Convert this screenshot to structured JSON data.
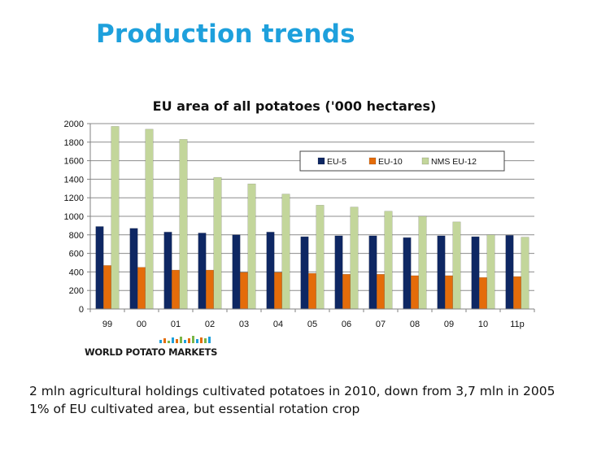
{
  "slide": {
    "title": "Production trends",
    "bullets": [
      "2 mln agricultural holdings cultivated potatoes in 2010, down from 3,7 mln in 2005",
      "1% of EU cultivated area, but essential rotation crop"
    ]
  },
  "logo": {
    "text": "WORLD POTATO MARKETS"
  },
  "colors": {
    "title": "#1ea0dc",
    "eu5": "#0e2763",
    "eu10": "#e46c0a",
    "nms": "#c3d69b"
  },
  "chart_data": {
    "type": "bar",
    "title": "EU area of all potatoes ('000 hectares)",
    "xlabel": "",
    "ylabel": "",
    "categories": [
      "99",
      "00",
      "01",
      "02",
      "03",
      "04",
      "05",
      "06",
      "07",
      "08",
      "09",
      "10",
      "11p"
    ],
    "ylim": [
      0,
      2000
    ],
    "yticks": [
      0,
      200,
      400,
      600,
      800,
      1000,
      1200,
      1400,
      1600,
      1800,
      2000
    ],
    "grid": true,
    "legend_position": "top-right",
    "series": [
      {
        "name": "EU-5",
        "color": "#0e2763",
        "values": [
          890,
          870,
          830,
          820,
          800,
          830,
          780,
          790,
          790,
          770,
          790,
          780,
          795
        ]
      },
      {
        "name": "EU-10",
        "color": "#e46c0a",
        "values": [
          470,
          450,
          420,
          420,
          395,
          395,
          385,
          375,
          375,
          360,
          360,
          340,
          350
        ]
      },
      {
        "name": "NMS EU-12",
        "color": "#c3d69b",
        "values": [
          1970,
          1940,
          1830,
          1420,
          1350,
          1240,
          1120,
          1100,
          1055,
          1000,
          940,
          800,
          775
        ]
      }
    ]
  }
}
